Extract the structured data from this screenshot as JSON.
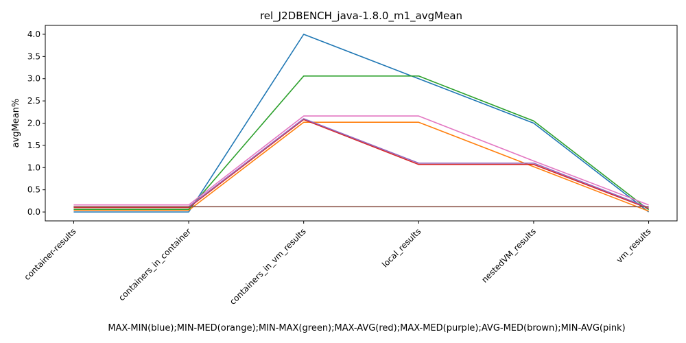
{
  "chart_data": {
    "type": "line",
    "title": "rel_J2DBENCH_java-1.8.0_m1_avgMean",
    "xlabel": "MAX-MIN(blue);MIN-MED(orange);MIN-MAX(green);MAX-AVG(red);MAX-MED(purple);AVG-MED(brown);MIN-AVG(pink)",
    "ylabel": "avgMean%",
    "ylim": [
      -0.2,
      4.2
    ],
    "yticks": [
      "0.0",
      "0.5",
      "1.0",
      "1.5",
      "2.0",
      "2.5",
      "3.0",
      "3.5",
      "4.0"
    ],
    "grid": false,
    "categories": [
      "container-results",
      "containers_in_container",
      "containers_in_vm_results",
      "local_results",
      "nestedVM_results",
      "vm_results"
    ],
    "series": [
      {
        "color": "#1f77b4",
        "values": [
          0.0,
          0.0,
          4.0,
          3.0,
          2.0,
          0.0
        ]
      },
      {
        "color": "#ff7f0e",
        "values": [
          0.04,
          0.04,
          2.02,
          2.02,
          1.02,
          0.02
        ]
      },
      {
        "color": "#2ca02c",
        "values": [
          0.06,
          0.06,
          3.06,
          3.06,
          2.05,
          0.05
        ]
      },
      {
        "color": "#d62728",
        "values": [
          0.1,
          0.1,
          2.08,
          1.07,
          1.07,
          0.08
        ]
      },
      {
        "color": "#9467bd",
        "values": [
          0.12,
          0.12,
          2.1,
          1.1,
          1.1,
          0.1
        ]
      },
      {
        "color": "#8c564b",
        "values": [
          0.12,
          0.12,
          0.12,
          0.12,
          0.12,
          0.12
        ]
      },
      {
        "color": "#e377c2",
        "values": [
          0.16,
          0.16,
          2.16,
          2.16,
          1.15,
          0.16
        ]
      }
    ]
  }
}
